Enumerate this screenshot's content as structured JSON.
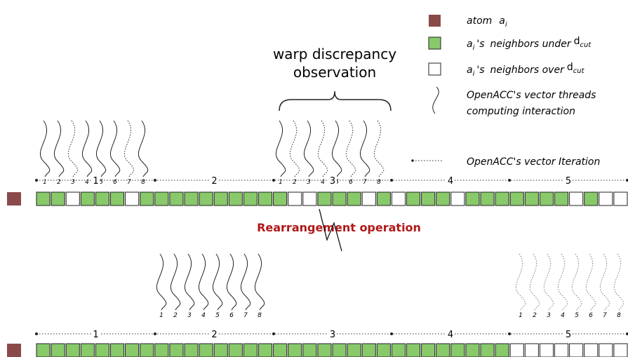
{
  "header": {
    "title_lines": [
      "warp discrepancy observation"
    ]
  },
  "annotation": {
    "brace_title": [
      "warp discrepancy",
      "observation"
    ],
    "operation": "Rearrangement operation"
  },
  "legend": [
    {
      "parts": [
        "atom",
        "a",
        "i"
      ]
    },
    {
      "parts": [
        "a",
        "i",
        "'s",
        "neighbors under",
        "d",
        "cut"
      ]
    },
    {
      "parts": [
        "a",
        "i",
        "'s",
        "neighbors over",
        "d",
        "cut"
      ]
    },
    {
      "lines": [
        "OpenACC's vector threads",
        "computing interaction"
      ]
    },
    {
      "lines": [
        "OpenACC's vector Iteration"
      ]
    }
  ],
  "thread_labels": [
    "1",
    "2",
    "3",
    "4",
    "5",
    "6",
    "7",
    "8"
  ],
  "segment_labels": [
    "1",
    "2",
    "3",
    "4",
    "5"
  ]
}
